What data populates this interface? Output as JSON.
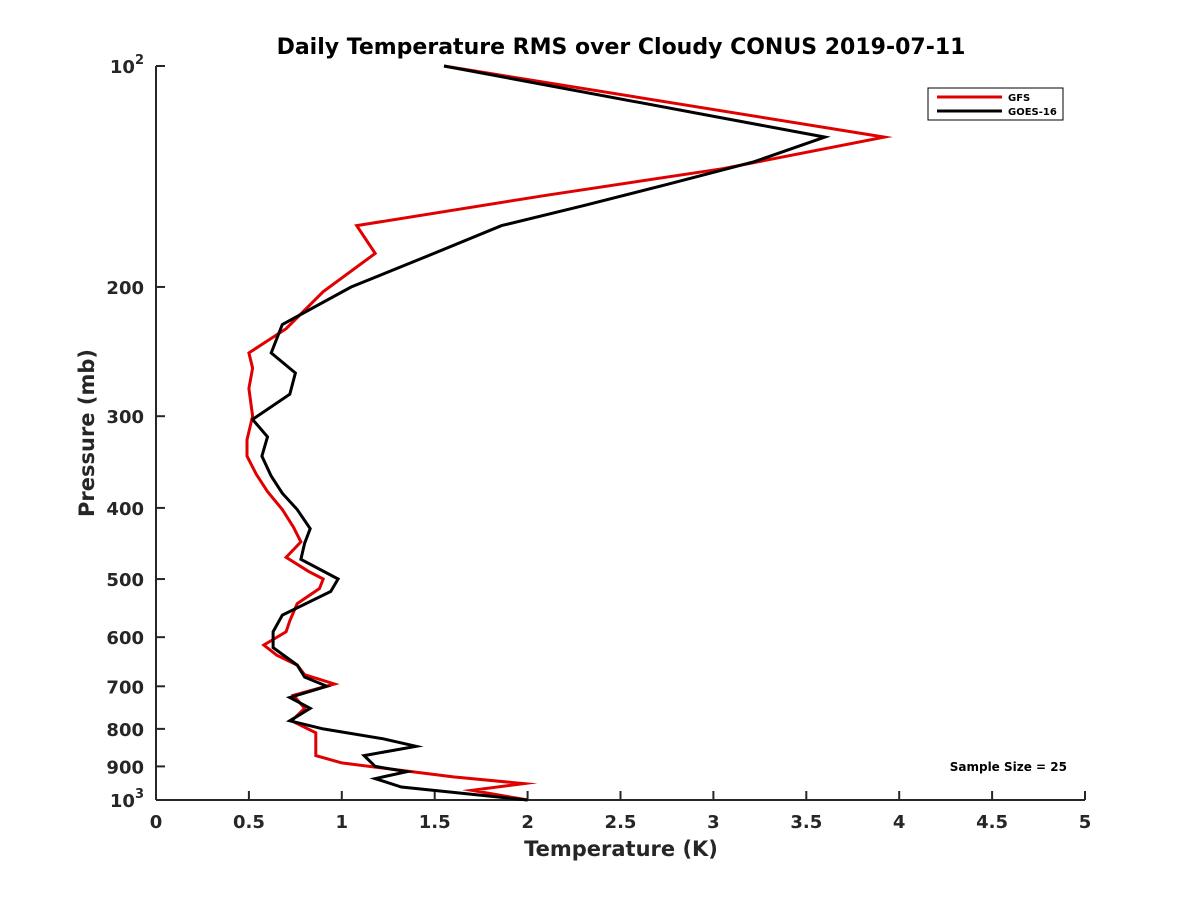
{
  "chart_data": {
    "type": "line",
    "title": "Daily Temperature RMS over Cloudy CONUS 2019-07-11",
    "xlabel": "Temperature (K)",
    "ylabel": "Pressure (mb)",
    "xlim": [
      0,
      5
    ],
    "ylim": [
      100,
      1000
    ],
    "y_scale": "log",
    "y_reversed": true,
    "grid": false,
    "legend_position": "top-right",
    "x_ticks": [
      0,
      0.5,
      1,
      1.5,
      2,
      2.5,
      3,
      3.5,
      4,
      4.5,
      5
    ],
    "x_tick_labels": [
      "0",
      "0.5",
      "1",
      "1.5",
      "2",
      "2.5",
      "3",
      "3.5",
      "4",
      "4.5",
      "5"
    ],
    "y_ticks": [
      {
        "value": 100,
        "base": "10",
        "exp": "2"
      },
      {
        "value": 200,
        "label": "200"
      },
      {
        "value": 300,
        "label": "300"
      },
      {
        "value": 400,
        "label": "400"
      },
      {
        "value": 500,
        "label": "500"
      },
      {
        "value": 600,
        "label": "600"
      },
      {
        "value": 700,
        "label": "700"
      },
      {
        "value": 800,
        "label": "800"
      },
      {
        "value": 900,
        "label": "900"
      },
      {
        "value": 1000,
        "base": "10",
        "exp": "3"
      }
    ],
    "annotation": "Sample Size = 25",
    "series": [
      {
        "name": "GFS",
        "color": "#e00000",
        "points": [
          [
            1.55,
            100
          ],
          [
            3.92,
            125
          ],
          [
            3.05,
            138
          ],
          [
            2.1,
            150
          ],
          [
            1.08,
            165
          ],
          [
            1.18,
            180
          ],
          [
            0.9,
            203
          ],
          [
            0.7,
            228
          ],
          [
            0.5,
            246
          ],
          [
            0.52,
            258
          ],
          [
            0.5,
            275
          ],
          [
            0.52,
            300
          ],
          [
            0.49,
            323
          ],
          [
            0.49,
            340
          ],
          [
            0.54,
            360
          ],
          [
            0.6,
            380
          ],
          [
            0.68,
            402
          ],
          [
            0.74,
            425
          ],
          [
            0.78,
            445
          ],
          [
            0.7,
            467
          ],
          [
            0.82,
            488
          ],
          [
            0.9,
            500
          ],
          [
            0.88,
            515
          ],
          [
            0.76,
            540
          ],
          [
            0.72,
            570
          ],
          [
            0.7,
            590
          ],
          [
            0.58,
            615
          ],
          [
            0.65,
            635
          ],
          [
            0.76,
            655
          ],
          [
            0.8,
            675
          ],
          [
            0.96,
            695
          ],
          [
            0.74,
            720
          ],
          [
            0.8,
            750
          ],
          [
            0.73,
            780
          ],
          [
            0.86,
            810
          ],
          [
            0.86,
            840
          ],
          [
            0.86,
            870
          ],
          [
            1.0,
            890
          ],
          [
            1.3,
            910
          ],
          [
            1.6,
            930
          ],
          [
            1.98,
            950
          ],
          [
            1.7,
            970
          ],
          [
            2.0,
            1000
          ]
        ]
      },
      {
        "name": "GOES-16",
        "color": "#000000",
        "points": [
          [
            1.55,
            100
          ],
          [
            3.6,
            125
          ],
          [
            3.22,
            135
          ],
          [
            2.75,
            145
          ],
          [
            2.3,
            155
          ],
          [
            1.86,
            165
          ],
          [
            1.45,
            182
          ],
          [
            1.05,
            200
          ],
          [
            0.68,
            225
          ],
          [
            0.62,
            246
          ],
          [
            0.75,
            262
          ],
          [
            0.72,
            280
          ],
          [
            0.52,
            303
          ],
          [
            0.6,
            320
          ],
          [
            0.57,
            340
          ],
          [
            0.62,
            362
          ],
          [
            0.68,
            382
          ],
          [
            0.76,
            402
          ],
          [
            0.83,
            427
          ],
          [
            0.8,
            447
          ],
          [
            0.78,
            470
          ],
          [
            0.98,
            500
          ],
          [
            0.94,
            520
          ],
          [
            0.68,
            560
          ],
          [
            0.63,
            590
          ],
          [
            0.63,
            620
          ],
          [
            0.76,
            655
          ],
          [
            0.8,
            680
          ],
          [
            0.92,
            700
          ],
          [
            0.72,
            725
          ],
          [
            0.83,
            750
          ],
          [
            0.72,
            780
          ],
          [
            0.9,
            800
          ],
          [
            1.22,
            825
          ],
          [
            1.4,
            845
          ],
          [
            1.12,
            870
          ],
          [
            1.18,
            900
          ],
          [
            1.35,
            915
          ],
          [
            1.18,
            935
          ],
          [
            1.32,
            960
          ],
          [
            2.0,
            1000
          ]
        ]
      }
    ]
  }
}
